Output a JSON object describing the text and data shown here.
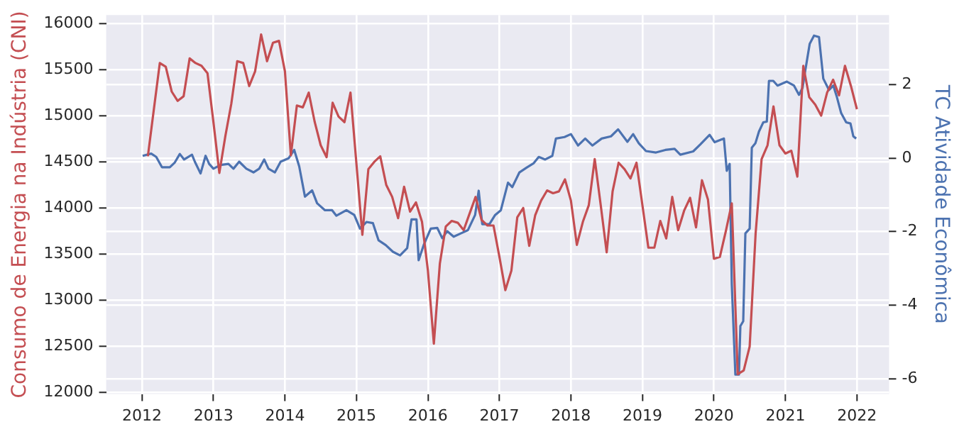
{
  "chart_data": {
    "type": "line",
    "ylabel": "Consumo de Energia na Indústria (CNI)",
    "y2label": "TC Atividade Econômica",
    "xlim": [
      2011.5,
      2022.45
    ],
    "xticks": [
      2012,
      2013,
      2014,
      2015,
      2016,
      2017,
      2018,
      2019,
      2020,
      2021,
      2022
    ],
    "ylim": [
      11985,
      16090
    ],
    "yticks": [
      12000,
      12500,
      13000,
      13500,
      14000,
      14500,
      15000,
      15500,
      16000
    ],
    "y2lim": [
      -6.42,
      3.89
    ],
    "y2ticks": [
      -6,
      -4,
      -2,
      0,
      2
    ],
    "grid": true,
    "legend": false,
    "marker": "none",
    "line_style": "solid",
    "series": [
      {
        "color": "#c44e52",
        "x": [
          2012.083,
          2012.167,
          2012.25,
          2012.333,
          2012.417,
          2012.5,
          2012.583,
          2012.667,
          2012.75,
          2012.833,
          2012.917,
          2013.0,
          2013.083,
          2013.167,
          2013.25,
          2013.333,
          2013.417,
          2013.5,
          2013.583,
          2013.667,
          2013.75,
          2013.833,
          2013.917,
          2014.0,
          2014.083,
          2014.167,
          2014.25,
          2014.333,
          2014.417,
          2014.5,
          2014.583,
          2014.667,
          2014.75,
          2014.833,
          2014.917,
          2015.0,
          2015.083,
          2015.167,
          2015.25,
          2015.333,
          2015.417,
          2015.5,
          2015.583,
          2015.667,
          2015.75,
          2015.833,
          2015.917,
          2016.0,
          2016.083,
          2016.167,
          2016.25,
          2016.333,
          2016.417,
          2016.5,
          2016.583,
          2016.667,
          2016.75,
          2016.833,
          2016.917,
          2017.0,
          2017.083,
          2017.167,
          2017.25,
          2017.333,
          2017.417,
          2017.5,
          2017.583,
          2017.667,
          2017.75,
          2017.833,
          2017.917,
          2018.0,
          2018.083,
          2018.167,
          2018.25,
          2018.333,
          2018.417,
          2018.5,
          2018.583,
          2018.667,
          2018.75,
          2018.833,
          2018.917,
          2019.0,
          2019.083,
          2019.167,
          2019.25,
          2019.333,
          2019.417,
          2019.5,
          2019.583,
          2019.667,
          2019.75,
          2019.833,
          2019.917,
          2020.0,
          2020.083,
          2020.167,
          2020.25,
          2020.333,
          2020.417,
          2020.5,
          2020.583,
          2020.667,
          2020.75,
          2020.833,
          2020.917,
          2021.0,
          2021.083,
          2021.167,
          2021.25,
          2021.333,
          2021.417,
          2021.5,
          2021.583,
          2021.667,
          2021.75,
          2021.833,
          2021.917,
          2022.0
        ],
        "values": [
          14560,
          15070,
          15570,
          15530,
          15260,
          15160,
          15210,
          15620,
          15570,
          15540,
          15460,
          14930,
          14380,
          14780,
          15130,
          15590,
          15570,
          15320,
          15480,
          15880,
          15590,
          15790,
          15810,
          15480,
          14570,
          15110,
          15090,
          15250,
          14930,
          14680,
          14550,
          15140,
          14990,
          14930,
          15250,
          14480,
          13710,
          14420,
          14500,
          14560,
          14250,
          14120,
          13890,
          14230,
          13960,
          14060,
          13850,
          13320,
          12530,
          13400,
          13800,
          13860,
          13840,
          13760,
          13940,
          14120,
          13870,
          13810,
          13810,
          13470,
          13110,
          13320,
          13900,
          14000,
          13590,
          13920,
          14080,
          14190,
          14160,
          14180,
          14310,
          14080,
          13600,
          13850,
          14030,
          14530,
          14030,
          13520,
          14180,
          14490,
          14420,
          14320,
          14490,
          14030,
          13570,
          13570,
          13860,
          13670,
          14120,
          13760,
          13970,
          14110,
          13790,
          14300,
          14090,
          13450,
          13470,
          13750,
          14050,
          12200,
          12240,
          12500,
          13720,
          14530,
          14680,
          15100,
          14680,
          14590,
          14620,
          14340,
          15540,
          15200,
          15120,
          15000,
          15250,
          15390,
          15220,
          15540,
          15320,
          15070
        ]
      },
      {
        "color": "#4c72b0",
        "axis": "y2",
        "x": [
          2012.01,
          2012.13,
          2012.2,
          2012.28,
          2012.39,
          2012.46,
          2012.53,
          2012.59,
          2012.7,
          2012.74,
          2012.82,
          2012.89,
          2012.94,
          2013.0,
          2013.1,
          2013.21,
          2013.28,
          2013.36,
          2013.46,
          2013.56,
          2013.64,
          2013.71,
          2013.77,
          2013.86,
          2013.94,
          2014.05,
          2014.13,
          2014.2,
          2014.28,
          2014.38,
          2014.45,
          2014.56,
          2014.66,
          2014.72,
          2014.86,
          2014.97,
          2015.05,
          2015.14,
          2015.23,
          2015.31,
          2015.41,
          2015.51,
          2015.61,
          2015.71,
          2015.77,
          2015.84,
          2015.87,
          2015.94,
          2016.04,
          2016.13,
          2016.2,
          2016.27,
          2016.36,
          2016.46,
          2016.56,
          2016.66,
          2016.71,
          2016.76,
          2016.86,
          2016.94,
          2017.02,
          2017.12,
          2017.18,
          2017.28,
          2017.38,
          2017.48,
          2017.55,
          2017.64,
          2017.74,
          2017.79,
          2017.91,
          2018.0,
          2018.1,
          2018.2,
          2018.3,
          2018.43,
          2018.56,
          2018.66,
          2018.79,
          2018.87,
          2018.95,
          2019.05,
          2019.19,
          2019.32,
          2019.45,
          2019.53,
          2019.71,
          2019.81,
          2019.94,
          2020.01,
          2020.14,
          2020.18,
          2020.22,
          2020.25,
          2020.3,
          2020.35,
          2020.37,
          2020.41,
          2020.44,
          2020.5,
          2020.53,
          2020.58,
          2020.63,
          2020.69,
          2020.74,
          2020.77,
          2020.83,
          2020.89,
          2021.02,
          2021.12,
          2021.19,
          2021.24,
          2021.27,
          2021.34,
          2021.4,
          2021.47,
          2021.53,
          2021.61,
          2021.67,
          2021.72,
          2021.78,
          2021.85,
          2021.91,
          2021.95,
          2021.99
        ],
        "values": [
          0.06,
          0.12,
          0.03,
          -0.25,
          -0.25,
          -0.12,
          0.11,
          -0.04,
          0.09,
          -0.1,
          -0.42,
          0.06,
          -0.16,
          -0.29,
          -0.19,
          -0.16,
          -0.29,
          -0.1,
          -0.29,
          -0.39,
          -0.29,
          -0.04,
          -0.29,
          -0.39,
          -0.1,
          -0.01,
          0.22,
          -0.23,
          -1.05,
          -0.88,
          -1.23,
          -1.42,
          -1.42,
          -1.57,
          -1.42,
          -1.55,
          -1.92,
          -1.74,
          -1.77,
          -2.24,
          -2.37,
          -2.55,
          -2.65,
          -2.45,
          -1.67,
          -1.67,
          -2.78,
          -2.37,
          -1.92,
          -1.9,
          -2.18,
          -1.99,
          -2.14,
          -2.05,
          -1.96,
          -1.55,
          -0.89,
          -1.8,
          -1.8,
          -1.55,
          -1.42,
          -0.67,
          -0.79,
          -0.39,
          -0.26,
          -0.14,
          0.03,
          -0.04,
          0.06,
          0.53,
          0.57,
          0.65,
          0.34,
          0.53,
          0.34,
          0.53,
          0.59,
          0.78,
          0.44,
          0.65,
          0.4,
          0.19,
          0.15,
          0.22,
          0.25,
          0.09,
          0.18,
          0.37,
          0.63,
          0.43,
          0.53,
          -0.35,
          -0.16,
          -3.43,
          -5.89,
          -5.89,
          -4.57,
          -4.44,
          -2.05,
          -1.92,
          0.28,
          0.4,
          0.72,
          0.97,
          0.99,
          2.1,
          2.1,
          1.97,
          2.08,
          1.97,
          1.72,
          1.91,
          2.29,
          3.11,
          3.33,
          3.29,
          2.16,
          1.85,
          1.97,
          1.66,
          1.22,
          0.97,
          0.94,
          0.59,
          0.53
        ]
      }
    ]
  }
}
